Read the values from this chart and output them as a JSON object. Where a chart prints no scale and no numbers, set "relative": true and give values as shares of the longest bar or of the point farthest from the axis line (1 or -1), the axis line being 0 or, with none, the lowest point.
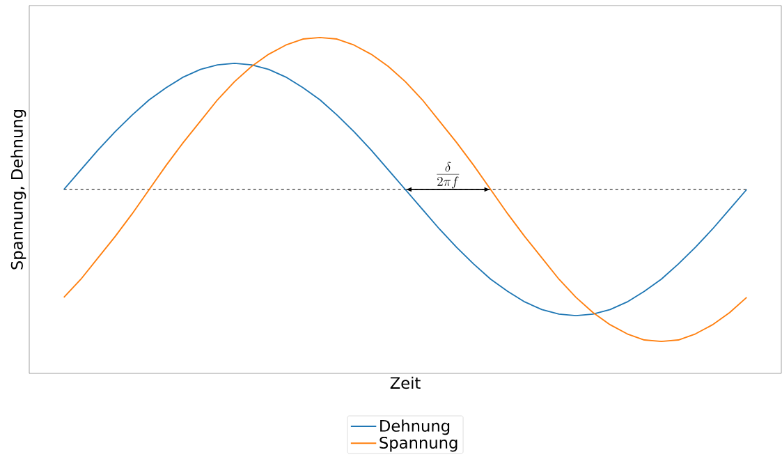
{
  "chart_data": {
    "type": "line",
    "relative": true,
    "xlabel": "Zeit",
    "ylabel": "Spannung, Dehnung",
    "legend": "bottom",
    "categories": [
      null,
      null,
      null,
      null,
      null,
      null,
      null,
      null,
      null,
      null,
      null,
      null,
      null,
      null,
      null,
      null,
      null,
      null,
      null,
      null,
      null,
      null,
      null,
      null,
      null,
      null,
      null,
      null,
      null,
      null,
      null,
      null,
      null,
      null,
      null,
      null,
      null,
      null,
      null,
      null,
      null
    ],
    "series": [
      {
        "name": "Dehnung",
        "color": "#1f77b4",
        "values": [
          0,
          0.13,
          0.26,
          0.38,
          0.49,
          0.59,
          0.67,
          0.74,
          0.79,
          0.82,
          0.83,
          0.82,
          0.79,
          0.74,
          0.67,
          0.59,
          0.49,
          0.38,
          0.26,
          0.13,
          0,
          -0.13,
          -0.26,
          -0.38,
          -0.49,
          -0.59,
          -0.67,
          -0.74,
          -0.79,
          -0.82,
          -0.83,
          -0.82,
          -0.79,
          -0.74,
          -0.67,
          -0.59,
          -0.49,
          -0.38,
          -0.26,
          -0.13,
          0
        ]
      },
      {
        "name": "Spannung",
        "color": "#ff7f0e",
        "values": [
          -0.71,
          -0.59,
          -0.45,
          -0.31,
          -0.16,
          0,
          0.16,
          0.31,
          0.45,
          0.59,
          0.71,
          0.81,
          0.89,
          0.95,
          0.99,
          1,
          0.99,
          0.95,
          0.89,
          0.81,
          0.71,
          0.59,
          0.45,
          0.31,
          0.16,
          0,
          -0.16,
          -0.31,
          -0.45,
          -0.59,
          -0.71,
          -0.81,
          -0.89,
          -0.95,
          -0.99,
          -1,
          -0.99,
          -0.95,
          -0.89,
          -0.81,
          -0.71
        ]
      }
    ],
    "ref_lines": [
      {
        "axis": "y",
        "value": 0,
        "color": "#000000",
        "line_style": "dashed"
      }
    ],
    "annotations": [
      {
        "text": "\\frac{\\delta}{2\\pi f}",
        "y": 0
      }
    ]
  }
}
